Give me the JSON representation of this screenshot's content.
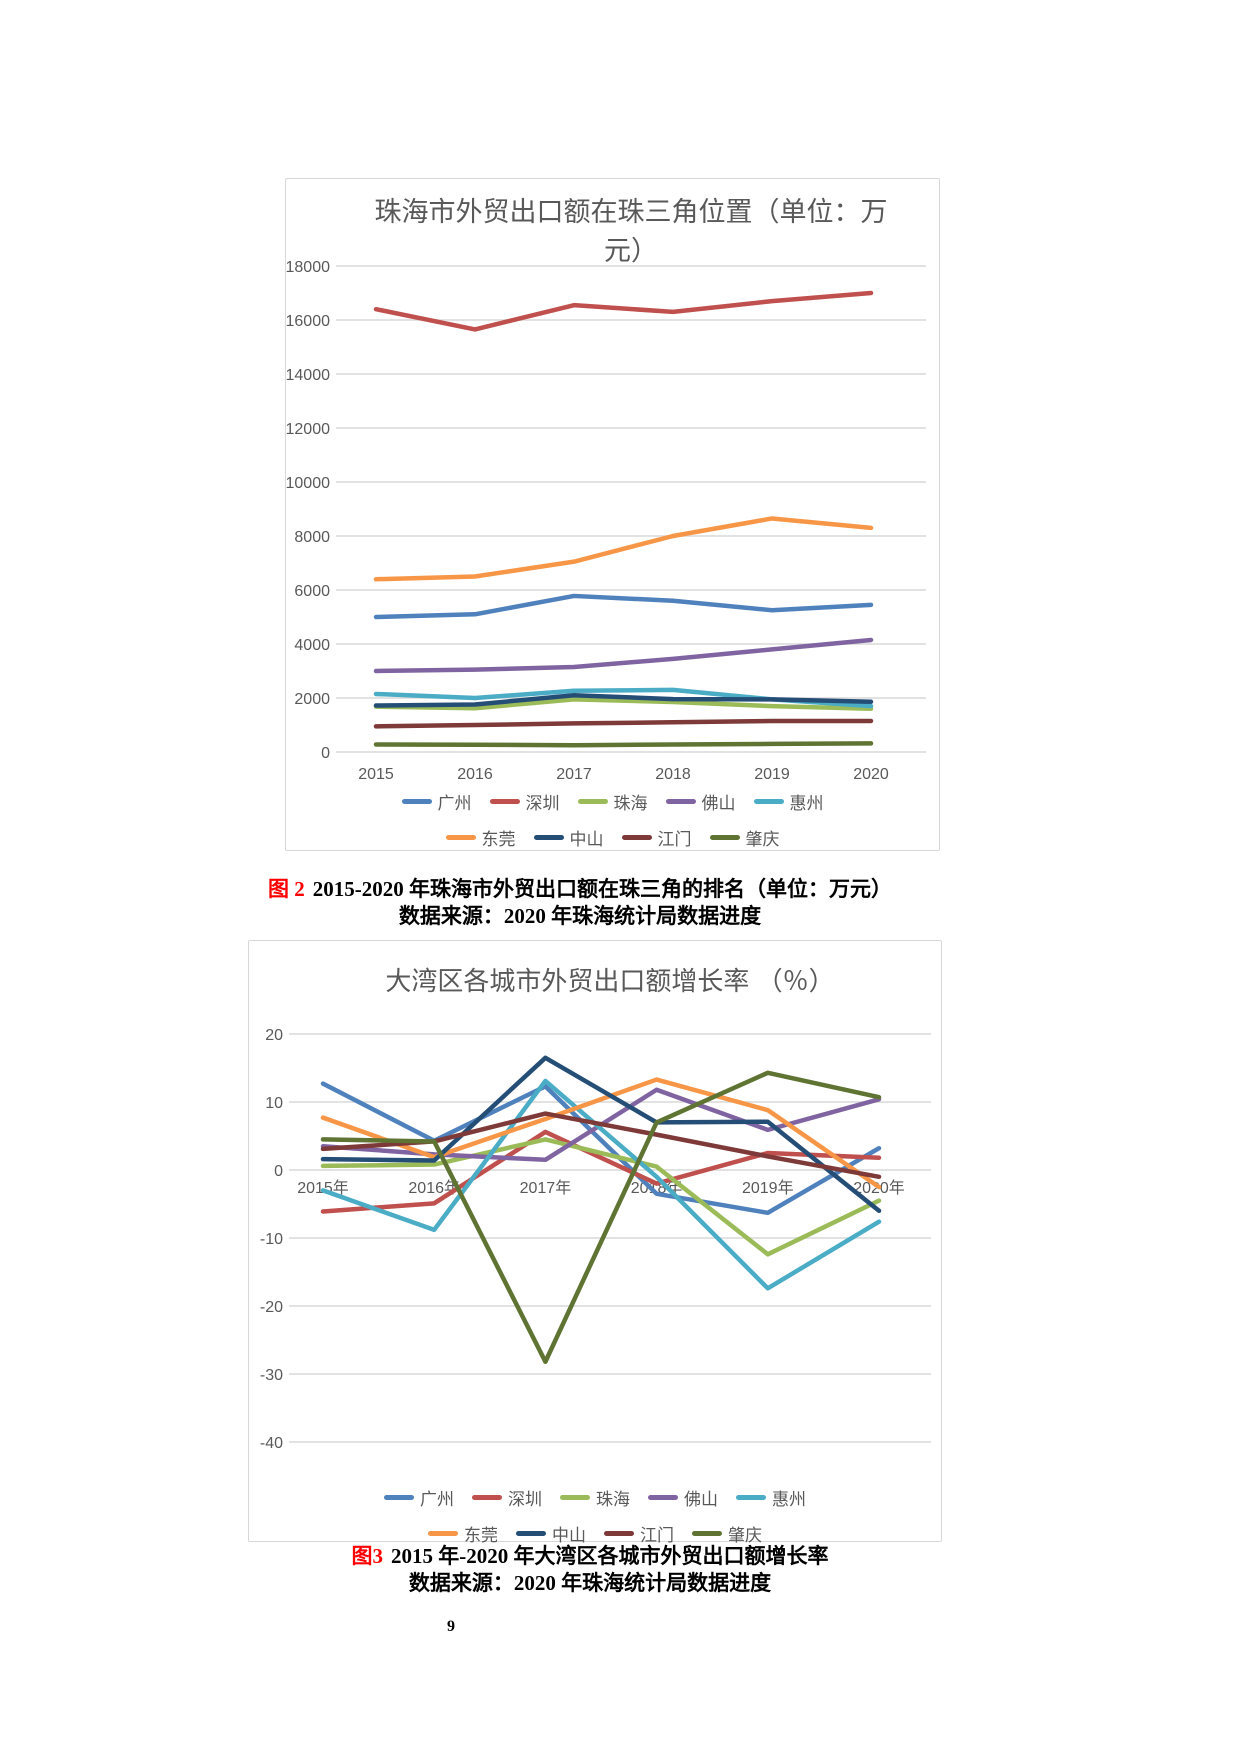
{
  "page": {
    "number": "9"
  },
  "colors": {
    "grid": "#d9d9d9",
    "axis_text": "#595959",
    "title_text": "#595959",
    "caption_accent": "#ff0000"
  },
  "chart_data": [
    {
      "id": "export-value-chart",
      "type": "line",
      "title": "珠海市外贸出口额在珠三角位置（单位：万元）",
      "categories": [
        "2015",
        "2016",
        "2017",
        "2018",
        "2019",
        "2020"
      ],
      "series": [
        {
          "name": "广州",
          "color": "#4F81BD",
          "values": [
            5000,
            5100,
            5780,
            5600,
            5250,
            5450
          ]
        },
        {
          "name": "深圳",
          "color": "#C0504D",
          "values": [
            16400,
            15650,
            16550,
            16300,
            16700,
            17000
          ]
        },
        {
          "name": "珠海",
          "color": "#9BBB59",
          "values": [
            1680,
            1620,
            1950,
            1850,
            1700,
            1600
          ]
        },
        {
          "name": "佛山",
          "color": "#8064A2",
          "values": [
            3000,
            3050,
            3150,
            3450,
            3800,
            4150
          ]
        },
        {
          "name": "惠州",
          "color": "#4BACC6",
          "values": [
            2150,
            2000,
            2270,
            2300,
            1950,
            1700
          ]
        },
        {
          "name": "东莞",
          "color": "#F79646",
          "values": [
            6400,
            6500,
            7050,
            8000,
            8650,
            8300
          ]
        },
        {
          "name": "中山",
          "color": "#254E77",
          "values": [
            1720,
            1760,
            2100,
            1960,
            1950,
            1860
          ]
        },
        {
          "name": "江门",
          "color": "#7E3A38",
          "values": [
            950,
            1000,
            1060,
            1100,
            1150,
            1150
          ]
        },
        {
          "name": "肇庆",
          "color": "#5F7433",
          "values": [
            280,
            270,
            250,
            280,
            300,
            320
          ]
        }
      ],
      "ylim": [
        0,
        18000
      ],
      "ytick_step": 2000,
      "xlabel": "",
      "ylabel": "",
      "grid": true,
      "legend_position": "bottom"
    },
    {
      "id": "growth-rate-chart",
      "type": "line",
      "title": "大湾区各城市外贸出口额增长率 （％）",
      "categories": [
        "2015年",
        "2016年",
        "2017年",
        "2018年",
        "2019年",
        "2020年"
      ],
      "series": [
        {
          "name": "广州",
          "color": "#4F81BD",
          "values": [
            12.7,
            4.3,
            12.3,
            -3.5,
            -6.3,
            3.2
          ]
        },
        {
          "name": "深圳",
          "color": "#C0504D",
          "values": [
            -6.1,
            -4.9,
            5.6,
            -2.0,
            2.5,
            1.8
          ]
        },
        {
          "name": "珠海",
          "color": "#9BBB59",
          "values": [
            0.6,
            0.8,
            4.5,
            0.5,
            -12.4,
            -4.5
          ]
        },
        {
          "name": "佛山",
          "color": "#8064A2",
          "values": [
            3.5,
            2.3,
            1.5,
            11.8,
            5.9,
            10.4
          ]
        },
        {
          "name": "惠州",
          "color": "#4BACC6",
          "values": [
            -3.0,
            -8.8,
            13.1,
            -1.0,
            -17.4,
            -7.6
          ]
        },
        {
          "name": "东莞",
          "color": "#F79646",
          "values": [
            7.7,
            1.9,
            7.5,
            13.3,
            8.8,
            -2.5
          ]
        },
        {
          "name": "中山",
          "color": "#254E77",
          "values": [
            1.6,
            1.4,
            16.5,
            7.0,
            7.1,
            -6.0
          ]
        },
        {
          "name": "江门",
          "color": "#7E3A38",
          "values": [
            3.1,
            4.2,
            8.3,
            5.2,
            2.0,
            -1.0
          ]
        },
        {
          "name": "肇庆",
          "color": "#5F7433",
          "values": [
            4.5,
            4.2,
            -28.2,
            7.0,
            14.3,
            10.7
          ]
        }
      ],
      "ylim": [
        -40,
        20
      ],
      "ytick_step": 10,
      "xlabel": "",
      "ylabel": "",
      "grid": true,
      "legend_position": "bottom"
    }
  ],
  "captions": [
    {
      "fig_label": "图 2",
      "text": "2015-2020 年珠海市外贸出口额在珠三角的排名（单位：万元）",
      "source": "数据来源：2020 年珠海统计局数据进度"
    },
    {
      "fig_label": "图3",
      "text": "2015 年-2020 年大湾区各城市外贸出口额增长率",
      "source": "数据来源：2020 年珠海统计局数据进度"
    }
  ]
}
